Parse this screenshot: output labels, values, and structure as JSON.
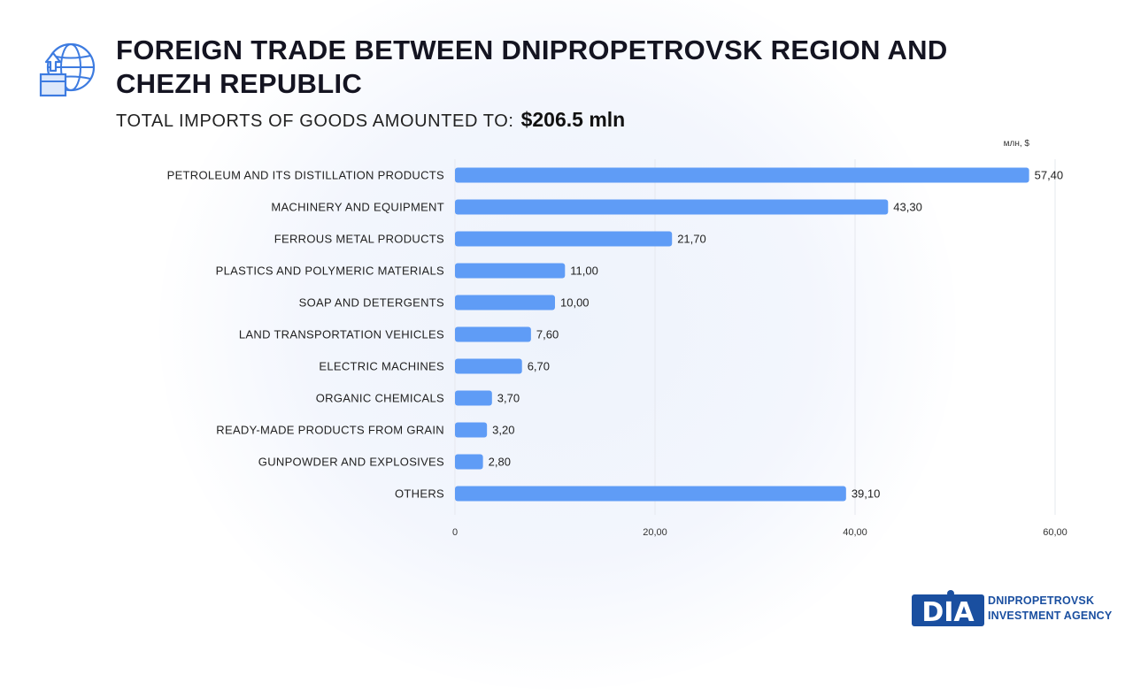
{
  "header": {
    "title": "FOREIGN TRADE BETWEEN DNIPROPETROVSK REGION AND CHEZH REPUBLIC",
    "subtitle_label": "TOTAL IMPORTS OF GOODS AMOUNTED TO:",
    "subtitle_amount": "$206.5 mln",
    "icon": "globe-box-upload-icon"
  },
  "brand": {
    "logo_letters": "DIA",
    "line1": "DNIPROPETROVSK",
    "line2": "INVESTMENT AGENCY"
  },
  "colors": {
    "bar": "#5f9cf6",
    "brand": "#1a4fa0",
    "grid": "#e6e8ee"
  },
  "chart_data": {
    "type": "bar",
    "orientation": "horizontal",
    "unit": "млн, $",
    "categories": [
      "PETROLEUM AND ITS DISTILLATION PRODUCTS",
      "MACHINERY AND EQUIPMENT",
      "FERROUS METAL PRODUCTS",
      "PLASTICS AND POLYMERIC MATERIALS",
      "SOAP AND DETERGENTS",
      "LAND TRANSPORTATION VEHICLES",
      "ELECTRIC MACHINES",
      "ORGANIC CHEMICALS",
      "READY-MADE PRODUCTS FROM GRAIN",
      "GUNPOWDER AND EXPLOSIVES",
      "OTHERS"
    ],
    "values": [
      57.4,
      43.3,
      21.7,
      11.0,
      10.0,
      7.6,
      6.7,
      3.7,
      3.2,
      2.8,
      39.1
    ],
    "value_labels": [
      "57,40",
      "43,30",
      "21,70",
      "11,00",
      "10,00",
      "7,60",
      "6,70",
      "3,70",
      "3,20",
      "2,80",
      "39,10"
    ],
    "xlim": [
      0,
      60
    ],
    "ticks": [
      0,
      20,
      40,
      60
    ],
    "tick_labels": [
      "0",
      "20,00",
      "40,00",
      "60,00"
    ],
    "grid": true
  }
}
